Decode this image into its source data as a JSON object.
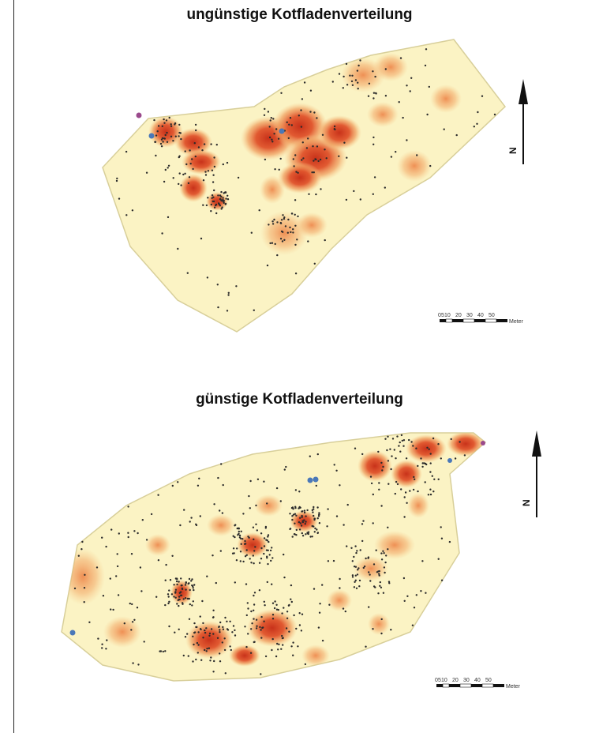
{
  "maps": [
    {
      "title": "ungünstige Kotfladenverteilung",
      "north_label": "N",
      "scale_ticks": [
        "0",
        "5",
        "10",
        "20",
        "30",
        "40",
        "50"
      ],
      "scale_unit": "Meter"
    },
    {
      "title": "günstige Kotfladenverteilung",
      "north_label": "N",
      "scale_ticks": [
        "0",
        "5",
        "10",
        "20",
        "30",
        "40",
        "50"
      ],
      "scale_unit": "Meter"
    }
  ],
  "colors": {
    "field_fill": "#fbf3c4",
    "field_stroke": "#d8cf9a",
    "heat_low": "#f7c98a",
    "heat_mid": "#ee8a4e",
    "heat_high": "#d83a1f",
    "dot": "#2b2b2b",
    "marker_blue": "#4a78b8",
    "marker_purple": "#9a4a8c"
  }
}
